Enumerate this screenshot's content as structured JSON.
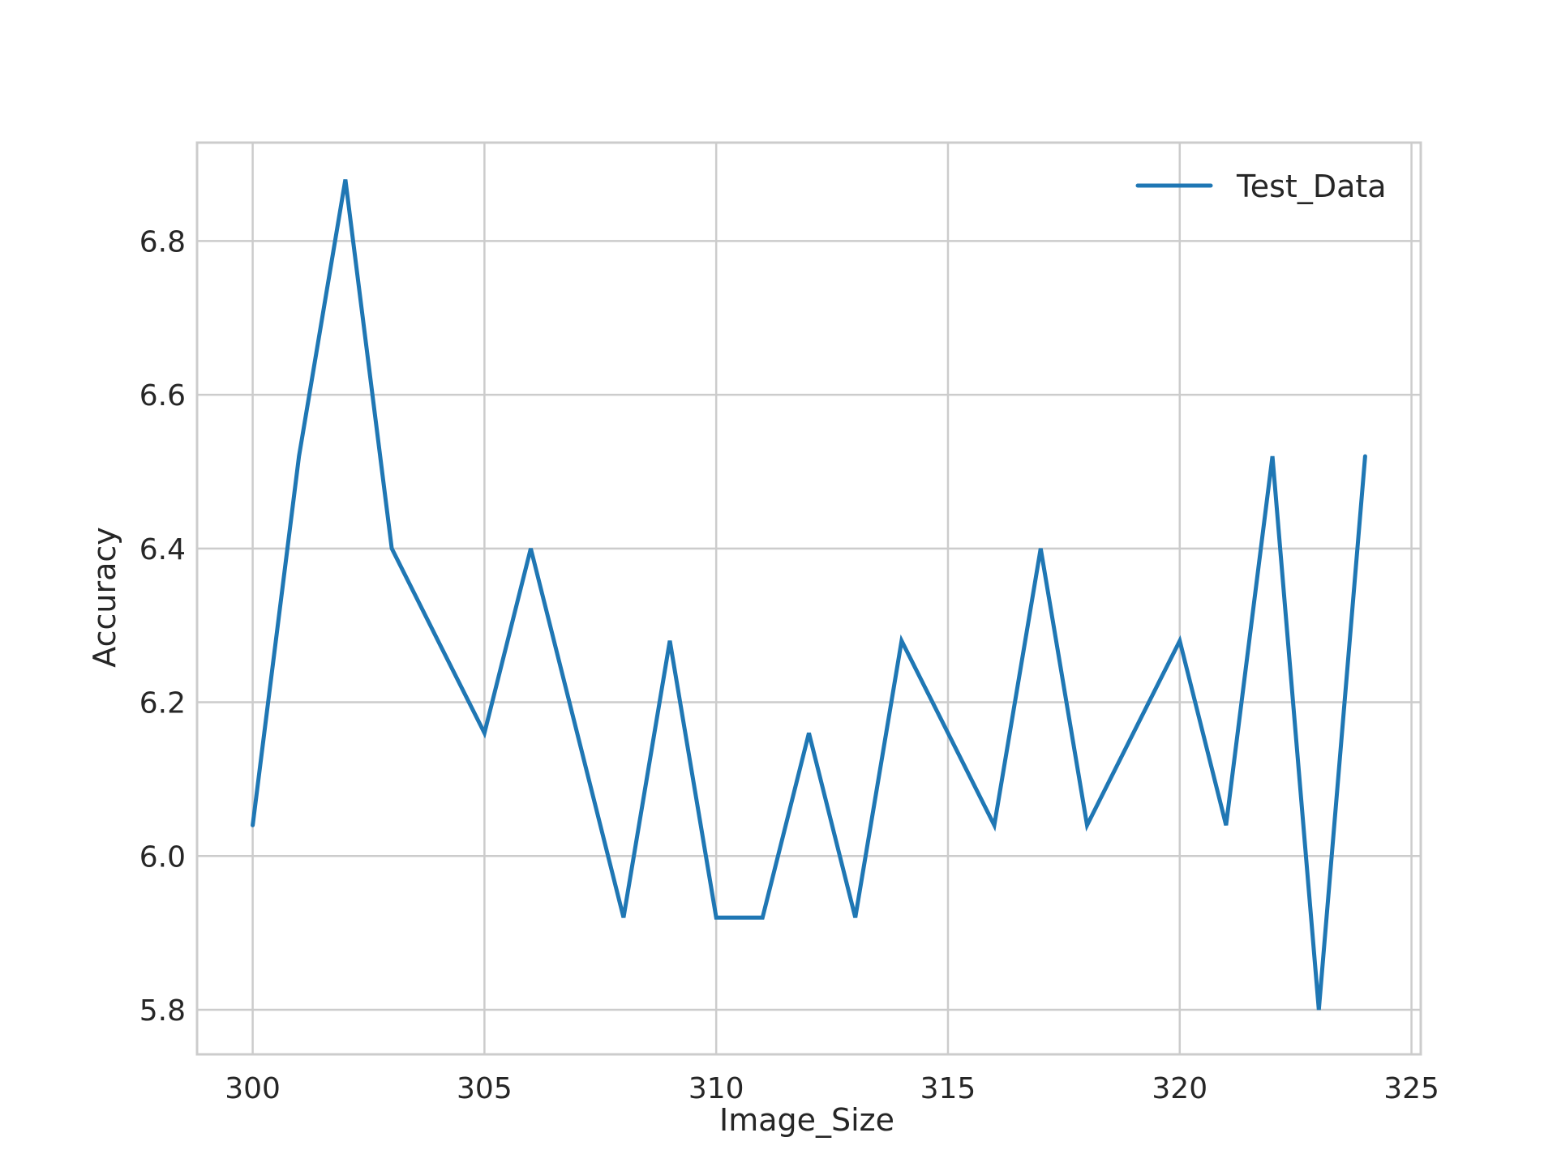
{
  "chart_data": {
    "type": "line",
    "title": "",
    "xlabel": "Image_Size",
    "ylabel": "Accuracy",
    "xlim": [
      298.8,
      325.2
    ],
    "ylim": [
      5.742,
      6.928
    ],
    "xticks": [
      300,
      305,
      310,
      315,
      320,
      325
    ],
    "xtick_labels": [
      "300",
      "305",
      "310",
      "315",
      "320",
      "325"
    ],
    "yticks": [
      5.8,
      6.0,
      6.2,
      6.4,
      6.6,
      6.8
    ],
    "ytick_labels": [
      "5.8",
      "6.0",
      "6.2",
      "6.4",
      "6.6",
      "6.8"
    ],
    "grid": true,
    "legend_position": "top-right",
    "series": [
      {
        "name": "Test_Data",
        "color": "#1f77b4",
        "x": [
          300,
          301,
          302,
          303,
          304,
          305,
          306,
          307,
          308,
          309,
          310,
          311,
          312,
          313,
          314,
          315,
          316,
          317,
          318,
          319,
          320,
          321,
          322,
          323,
          324
        ],
        "y": [
          6.04,
          6.52,
          6.88,
          6.4,
          6.28,
          6.16,
          6.4,
          6.16,
          5.92,
          6.28,
          5.92,
          5.92,
          6.16,
          5.92,
          6.28,
          6.16,
          6.04,
          6.4,
          6.04,
          6.16,
          6.28,
          6.04,
          6.52,
          5.8,
          6.52
        ]
      }
    ]
  }
}
